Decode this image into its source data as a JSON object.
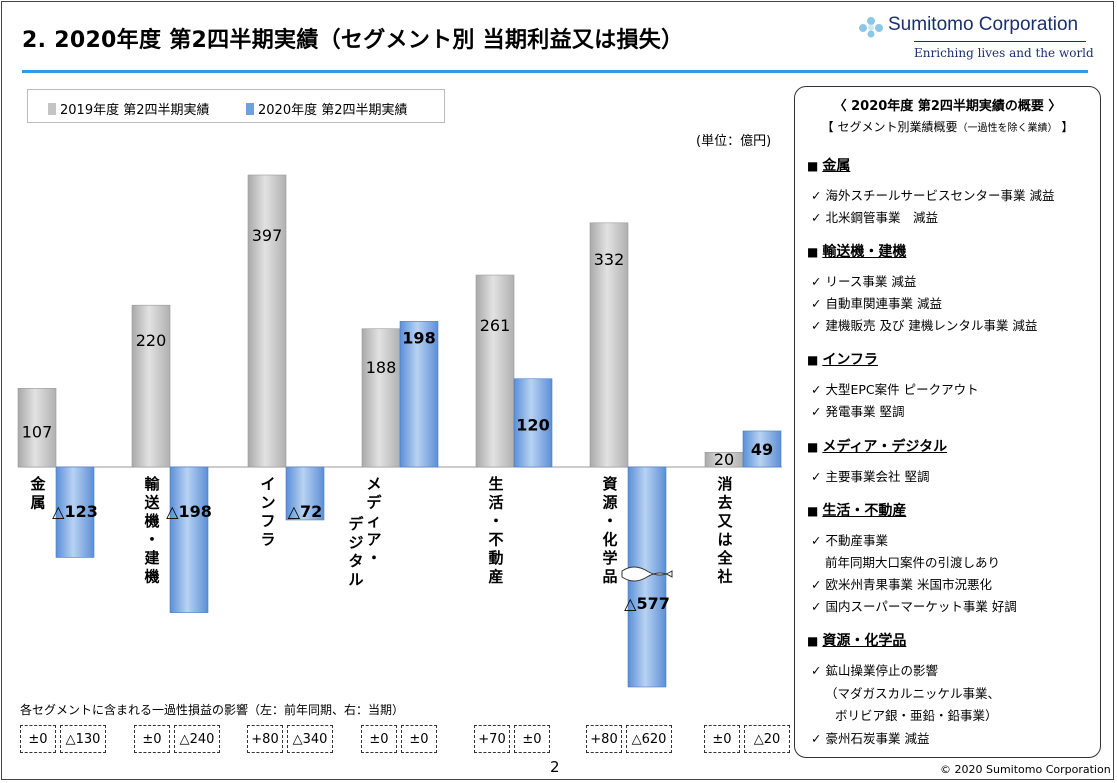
{
  "title": "2. 2020年度 第2四半期実績（セグメント別 当期利益又は損失）",
  "logo": {
    "name": "Sumitomo Corporation",
    "tagline": "Enriching lives and the world"
  },
  "unit_label": "(単位：億円)",
  "chart_data": {
    "type": "bar",
    "title": "",
    "categories": [
      "金属",
      "輸送機・建機",
      "インフラ",
      "メディア・デジタル",
      "生活・不動産",
      "資源・化学品",
      "消去又は全社"
    ],
    "category_lines": [
      [
        "金",
        "属"
      ],
      [
        "輸",
        "送",
        "機",
        "・",
        "建",
        "機"
      ],
      [
        "イ",
        "ン",
        "フ",
        "ラ"
      ],
      [
        "メ",
        "デ",
        "ィ",
        "ア",
        "・"
      ],
      [
        "生",
        "活",
        "・",
        "不",
        "動",
        "産"
      ],
      [
        "資",
        "源",
        "・",
        "化",
        "学",
        "品"
      ],
      [
        "消",
        "去",
        "又",
        "は",
        "全",
        "社"
      ]
    ],
    "category_lines_col2": [
      [],
      [],
      [],
      [
        "デ",
        "ジ",
        "タ",
        "ル"
      ],
      [],
      [],
      []
    ],
    "series": [
      {
        "name": "2019年度 第2四半期実績",
        "values": [
          107,
          220,
          397,
          188,
          261,
          332,
          20
        ],
        "color": "#c4c4c4"
      },
      {
        "name": "2020年度 第2四半期実績",
        "values": [
          -123,
          -198,
          -72,
          198,
          120,
          -577,
          49
        ],
        "color": "#6f9fe0"
      }
    ],
    "value_labels": [
      [
        "107",
        "220",
        "397",
        "188",
        "261",
        "332",
        "20"
      ],
      [
        "△123",
        "△198",
        "△72",
        "198",
        "120",
        "△577",
        "49"
      ]
    ],
    "axis_break": {
      "series": 1,
      "category": 5
    },
    "ylim": [
      -300,
      400
    ],
    "xlabel": "",
    "ylabel": "",
    "legend": "top-left"
  },
  "oneoff": {
    "note": "各セグメントに含まれる一過性損益の影響（左：前年同期、右：当期）",
    "pairs": [
      [
        "±0",
        "△130"
      ],
      [
        "±0",
        "△240"
      ],
      [
        "+80",
        "△340"
      ],
      [
        "±0",
        "±0"
      ],
      [
        "+70",
        "±0"
      ],
      [
        "+80",
        "△620"
      ],
      [
        "±0",
        "△20"
      ]
    ]
  },
  "summary": {
    "title": "〈 2020年度 第2四半期実績の概要 〉",
    "subtitle": "【 セグメント別業績概要",
    "subtitle_small": "（一過性を除く業績）",
    "subtitle_end": "】",
    "sections": [
      {
        "head": "金属",
        "items": [
          "海外スチールサービスセンター事業 減益",
          "北米鋼管事業　減益"
        ]
      },
      {
        "head": "輸送機・建機",
        "items": [
          "リース事業 減益",
          "自動車関連事業 減益",
          "建機販売 及び 建機レンタル事業 減益"
        ]
      },
      {
        "head": "インフラ",
        "items": [
          "大型EPC案件 ピークアウト",
          "発電事業 堅調"
        ]
      },
      {
        "head": "メディア・デジタル",
        "items": [
          "主要事業会社 堅調"
        ]
      },
      {
        "head": "生活・不動産",
        "items": [
          "不動産事業",
          "欧米州青果事業 米国市況悪化",
          "国内スーパーマーケット事業 好調"
        ],
        "cont": {
          "after": 0,
          "text": "前年同期大口案件の引渡しあり"
        }
      },
      {
        "head": "資源・化学品",
        "items": [
          "鉱山操業停止の影響",
          "豪州石炭事業 減益"
        ],
        "cont_lines": [
          "（マダガスカルニッケル事業、",
          "ボリビア銀・亜鉛・鉛事業）"
        ]
      }
    ],
    "checkmark": "✓",
    "bullet": "■"
  },
  "page_number": "2",
  "copyright": "© 2020 Sumitomo Corporation"
}
